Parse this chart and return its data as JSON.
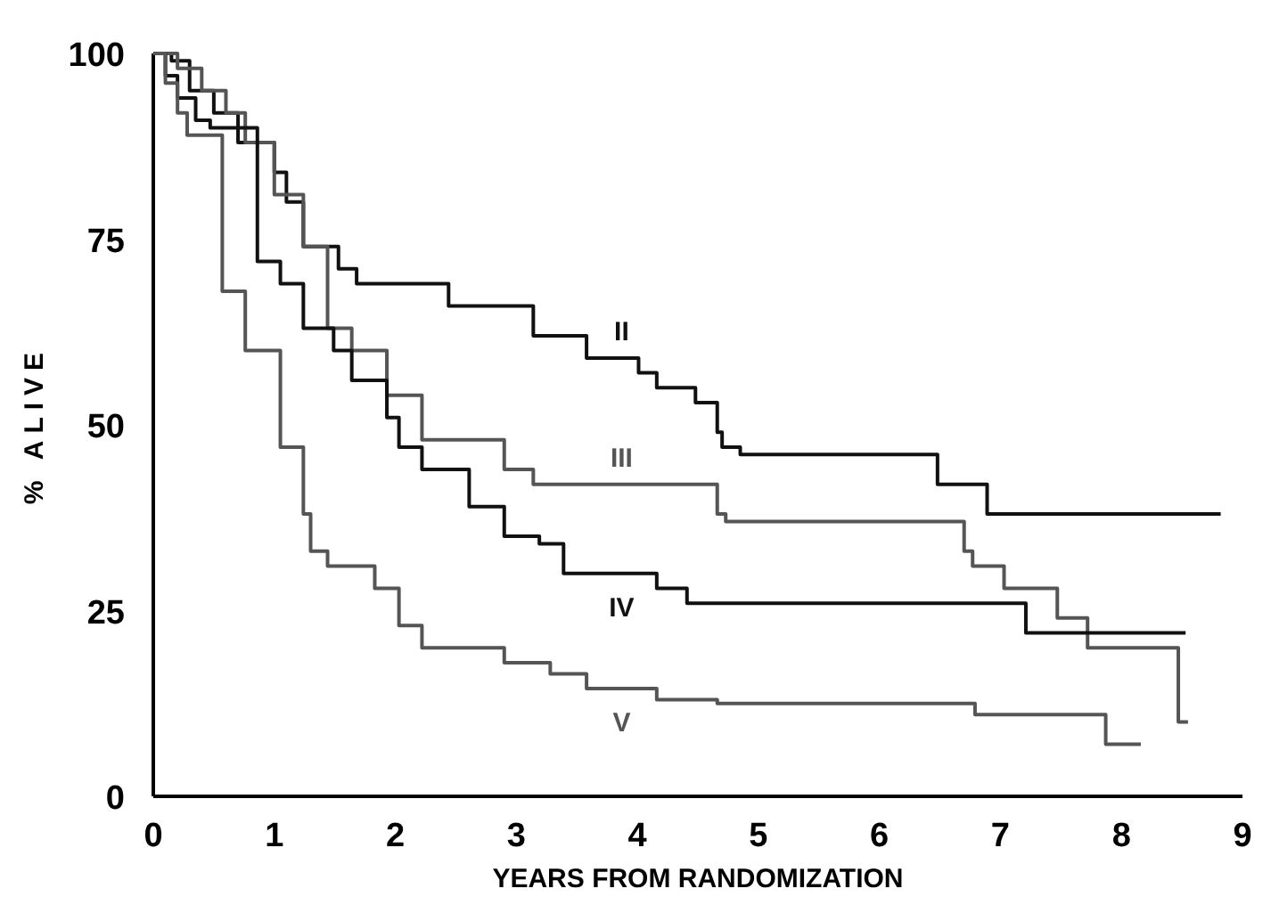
{
  "chart_data": {
    "type": "step",
    "xlabel": "YEARS FROM RANDOMIZATION",
    "ylabel": "% ALIVE",
    "xlim": [
      0,
      9
    ],
    "xticks": [
      0,
      1,
      2,
      3,
      4,
      5,
      6,
      7,
      8,
      9
    ],
    "ylim": [
      0,
      100
    ],
    "yticks": [
      0,
      25,
      50,
      75,
      100
    ],
    "grid": false,
    "legend": false,
    "series": [
      {
        "name": "II",
        "color": "#111111",
        "x": [
          0,
          0.15,
          0.3,
          0.5,
          0.7,
          1.0,
          1.1,
          1.24,
          1.53,
          1.68,
          2.44,
          3.14,
          3.58,
          4.01,
          4.16,
          4.48,
          4.66,
          4.7,
          4.85,
          6.48,
          6.89,
          8.82
        ],
        "values": [
          100,
          100,
          99,
          95,
          92,
          88,
          84,
          80,
          74,
          71,
          69,
          66,
          62,
          59,
          57,
          55,
          53,
          49,
          47,
          46,
          42,
          38
        ]
      },
      {
        "name": "III",
        "color": "#555555",
        "x": [
          0,
          0.2,
          0.4,
          0.6,
          0.76,
          1.0,
          1.24,
          1.44,
          1.64,
          1.93,
          2.22,
          2.9,
          3.14,
          4.66,
          4.73,
          6.7,
          6.77,
          7.03,
          7.47,
          7.72,
          8.47,
          8.55
        ],
        "values": [
          100,
          100,
          98,
          95,
          92,
          88,
          81,
          74,
          63,
          60,
          54,
          48,
          44,
          42,
          38,
          37,
          33,
          31,
          28,
          24,
          20,
          10
        ]
      },
      {
        "name": "IV",
        "color": "#111111",
        "x": [
          0,
          0.1,
          0.2,
          0.35,
          0.47,
          0.86,
          1.05,
          1.24,
          1.49,
          1.64,
          1.93,
          2.03,
          2.22,
          2.61,
          2.9,
          3.19,
          3.39,
          4.16,
          4.41,
          7.21,
          8.53
        ],
        "values": [
          100,
          100,
          97,
          94,
          91,
          90,
          72,
          69,
          63,
          60,
          56,
          51,
          47,
          44,
          39,
          35,
          34,
          30,
          28,
          26,
          22
        ]
      },
      {
        "name": "V",
        "color": "#555555",
        "x": [
          0,
          0.1,
          0.2,
          0.28,
          0.57,
          0.76,
          1.05,
          1.24,
          1.3,
          1.44,
          1.83,
          2.03,
          2.22,
          2.9,
          3.28,
          3.58,
          4.16,
          4.66,
          6.79,
          7.87,
          8.16
        ],
        "values": [
          100,
          100,
          96,
          92,
          89,
          68,
          60,
          47,
          38,
          33,
          31,
          28,
          23,
          20,
          18,
          16.5,
          14.5,
          13,
          12.5,
          11,
          7
        ]
      }
    ]
  }
}
